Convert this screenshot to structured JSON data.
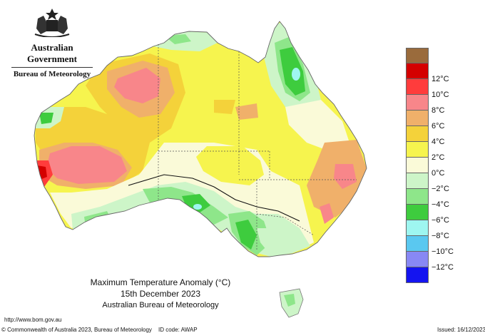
{
  "header": {
    "agency": "Australian Government",
    "bureau": "Bureau of Meteorology"
  },
  "map": {
    "title_line1": "Maximum Temperature Anomaly (°C)",
    "date": "15th December 2023",
    "source": "Australian Bureau of Meteorology"
  },
  "legend": {
    "items": [
      {
        "label": "",
        "color": "#9a6b3c"
      },
      {
        "label": "12°C",
        "color": "#d40000"
      },
      {
        "label": "10°C",
        "color": "#ff3c3c"
      },
      {
        "label": "8°C",
        "color": "#f8868a"
      },
      {
        "label": "6°C",
        "color": "#f0b06a"
      },
      {
        "label": "4°C",
        "color": "#f4d23a"
      },
      {
        "label": "2°C",
        "color": "#f6f44e"
      },
      {
        "label": "0°C",
        "color": "#fafad8"
      },
      {
        "label": "−2°C",
        "color": "#cdf5c8"
      },
      {
        "label": "−4°C",
        "color": "#8ee68a"
      },
      {
        "label": "−6°C",
        "color": "#3ecc3e"
      },
      {
        "label": "−8°C",
        "color": "#9ef6f0"
      },
      {
        "label": "−10°C",
        "color": "#5ac8f0"
      },
      {
        "label": "−12°C",
        "color": "#8888f4"
      },
      {
        "label": "",
        "color": "#1414f0"
      }
    ]
  },
  "footer": {
    "url": "http://www.bom.gov.au",
    "copyright": "© Commonwealth of Australia 2023, Bureau of Meteorology",
    "id_code": "ID code: AWAP",
    "issued": "Issued: 16/12/2023"
  }
}
